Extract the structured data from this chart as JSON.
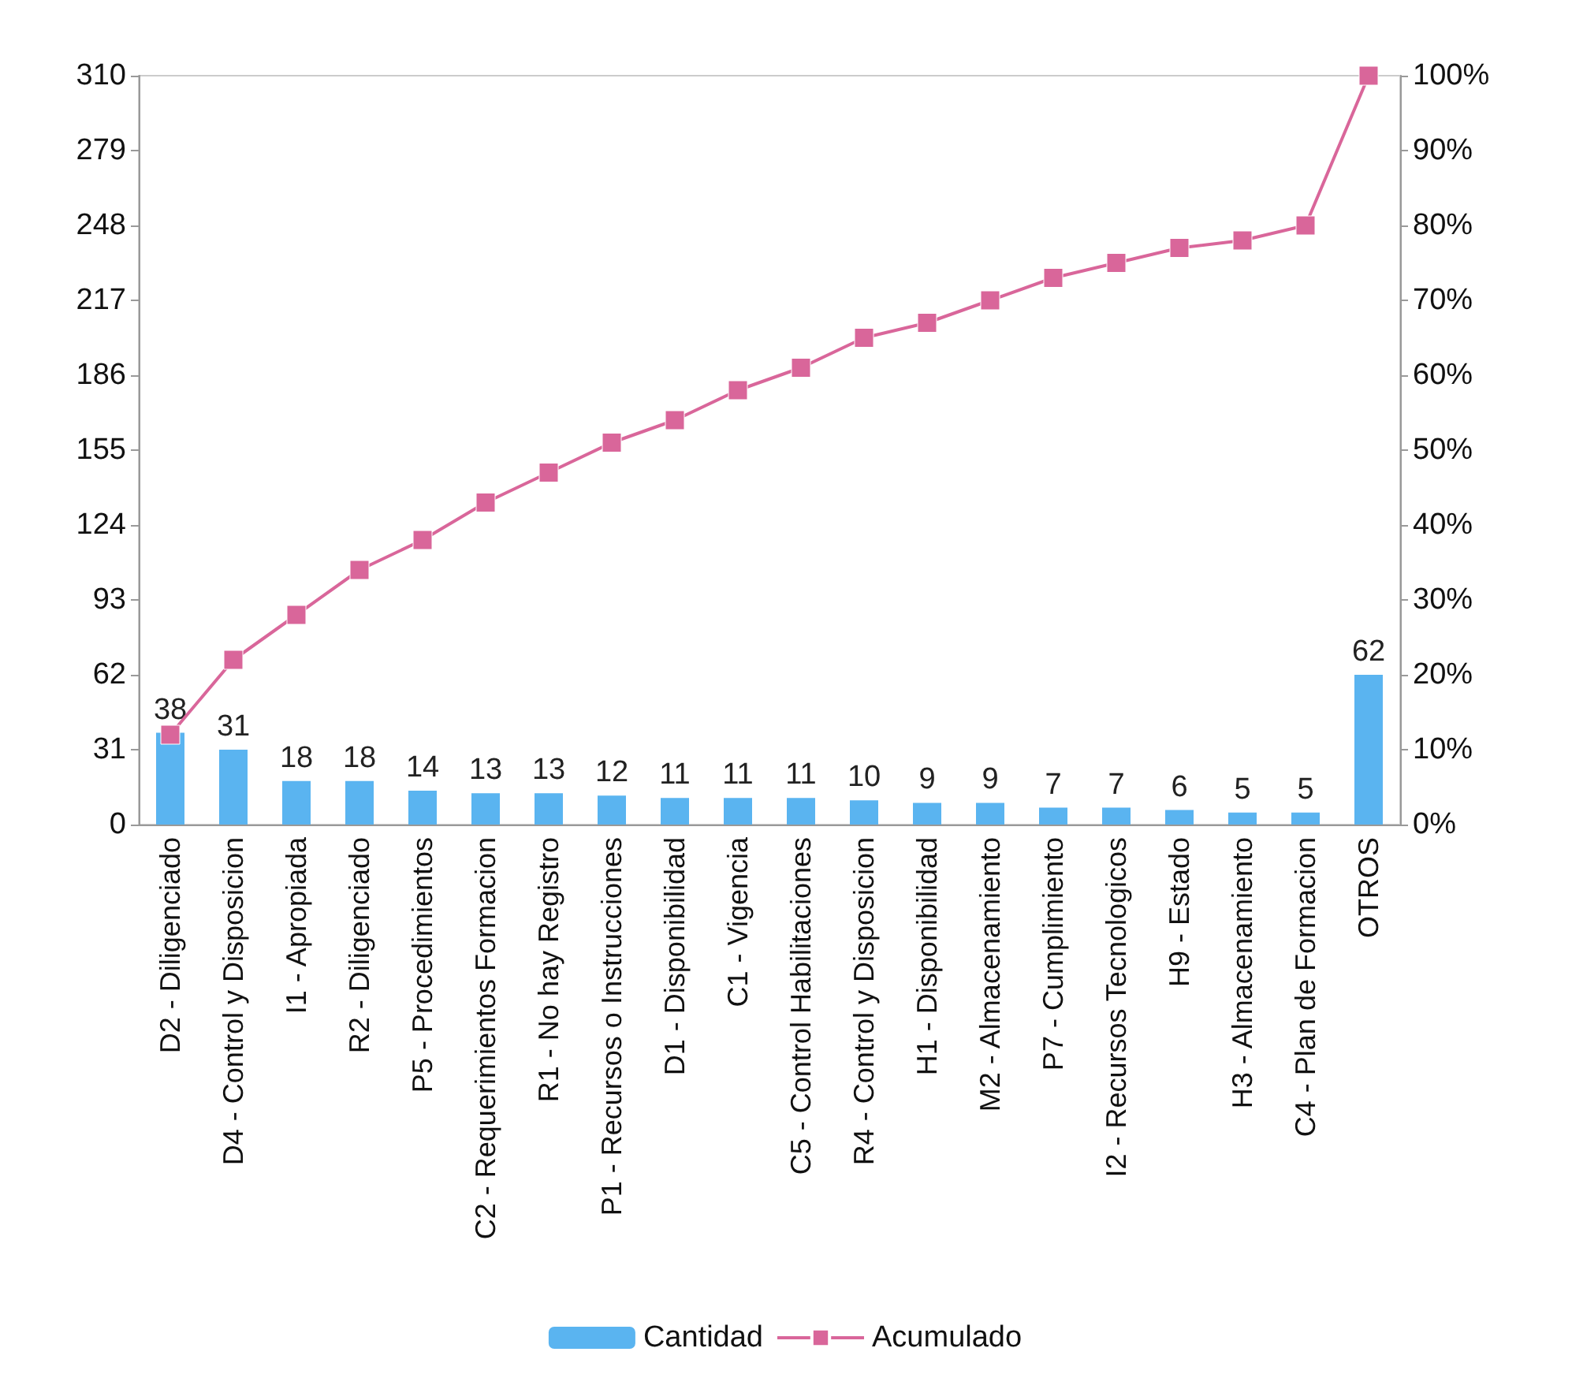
{
  "chart_data": {
    "type": "bar",
    "categories": [
      "D2 - Diligenciado",
      "D4 - Control y Disposicion",
      "I1 - Apropiada",
      "R2 - Diligenciado",
      "P5 - Procedimientos",
      "C2 - Requerimientos Formacion",
      "R1 - No hay Registro",
      "P1 - Recursos o Instrucciones",
      "D1 - Disponibilidad",
      "C1 - Vigencia",
      "C5 - Control Habilitaciones",
      "R4 - Control y Disposicion",
      "H1 - Disponibilidad",
      "M2 - Almacenamiento",
      "P7 - Cumplimiento",
      "I2 - Recursos Tecnologicos",
      "H9 - Estado",
      "H3 - Almacenamiento",
      "C4 - Plan de Formacion",
      "OTROS"
    ],
    "series": [
      {
        "name": "Cantidad",
        "color": "#5ab4f0",
        "values": [
          38,
          31,
          18,
          18,
          14,
          13,
          13,
          12,
          11,
          11,
          11,
          10,
          9,
          9,
          7,
          7,
          6,
          5,
          5,
          62
        ],
        "data_labels": true
      },
      {
        "name": "Acumulado",
        "type": "line",
        "axis": "y2",
        "color": "#d9669a",
        "marker": "square",
        "values": [
          12,
          22,
          28,
          34,
          38,
          43,
          47,
          51,
          54,
          58,
          61,
          65,
          67,
          70,
          73,
          75,
          77,
          78,
          80,
          100
        ]
      }
    ],
    "ylim": [
      0,
      310
    ],
    "yticks": [
      0,
      31,
      62,
      93,
      124,
      155,
      186,
      217,
      248,
      279,
      310
    ],
    "y2lim": [
      0,
      100
    ],
    "y2ticks": [
      {
        "value": 0,
        "label": "0%"
      },
      {
        "value": 10,
        "label": "10%"
      },
      {
        "value": 20,
        "label": "20%"
      },
      {
        "value": 30,
        "label": "30%"
      },
      {
        "value": 40,
        "label": "40%"
      },
      {
        "value": 50,
        "label": "50%"
      },
      {
        "value": 60,
        "label": "60%"
      },
      {
        "value": 70,
        "label": "70%"
      },
      {
        "value": 80,
        "label": "80%"
      },
      {
        "value": 90,
        "label": "90%"
      },
      {
        "value": 100,
        "label": "100%"
      }
    ],
    "grid": false,
    "legend": "bottom"
  }
}
